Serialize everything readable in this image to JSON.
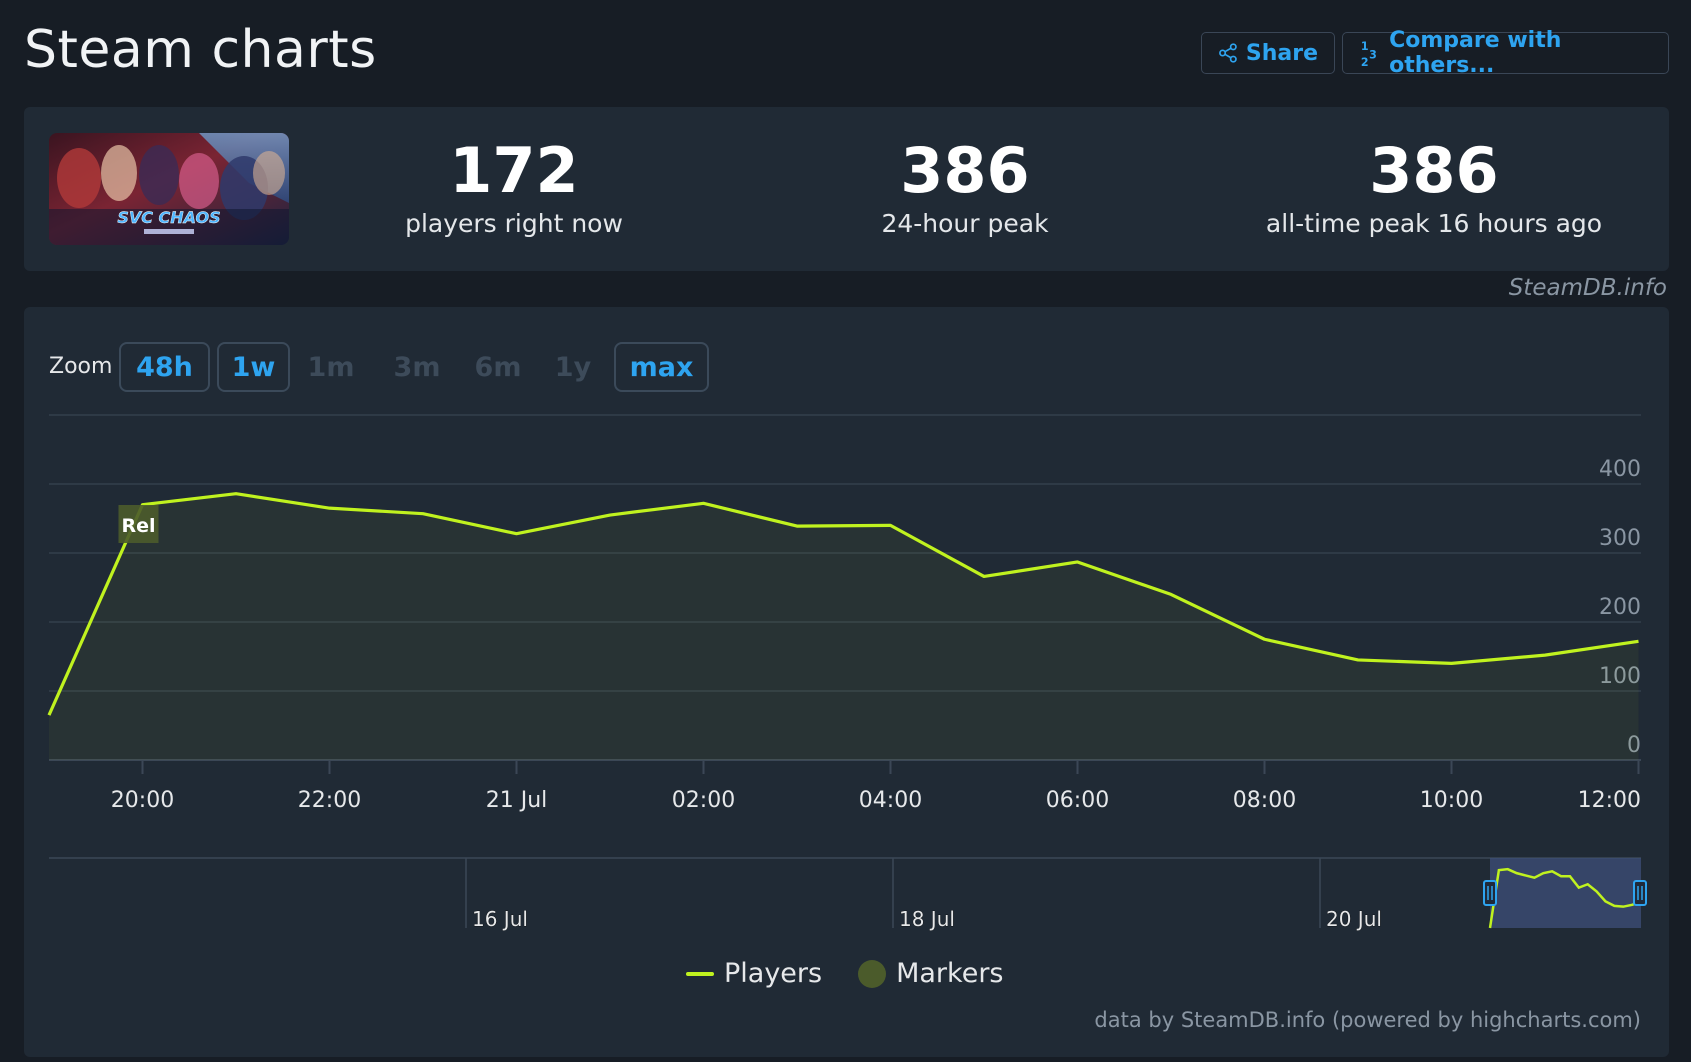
{
  "page": {
    "title": "Steam charts"
  },
  "toolbar": {
    "share_label": "Share",
    "compare_label": "Compare with others..."
  },
  "summary": {
    "players_now_value": "172",
    "players_now_label": "players right now",
    "peak_24h_value": "386",
    "peak_24h_label": "24-hour peak",
    "all_time_peak_value": "386",
    "all_time_peak_label": "all-time peak 16 hours ago",
    "capsule_text": "SVC CHAOS"
  },
  "credit": "SteamDB.info",
  "zoom": {
    "label": "Zoom",
    "options": [
      {
        "label": "48h",
        "active": true
      },
      {
        "label": "1w",
        "active": true
      },
      {
        "label": "1m",
        "active": false
      },
      {
        "label": "3m",
        "active": false
      },
      {
        "label": "6m",
        "active": false
      },
      {
        "label": "1y",
        "active": false
      },
      {
        "label": "max",
        "active": true
      }
    ]
  },
  "legend": {
    "players": "Players",
    "markers": "Markers"
  },
  "footer": "data by SteamDB.info (powered by highcharts.com)",
  "colors": {
    "background": "#171d25",
    "panel": "#202a35",
    "accent": "#2ea4f0",
    "series": "#c0f21f",
    "marker": "#4b5b2b"
  },
  "chart_data": {
    "type": "line",
    "series": [
      {
        "name": "Players",
        "x": [
          "19:00",
          "20:00",
          "21:00",
          "22:00",
          "23:00",
          "00:00",
          "01:00",
          "02:00",
          "03:00",
          "04:00",
          "05:00",
          "06:00",
          "07:00",
          "08:00",
          "09:00",
          "10:00",
          "11:00",
          "12:00"
        ],
        "values": [
          65,
          370,
          386,
          365,
          357,
          328,
          355,
          372,
          339,
          340,
          266,
          287,
          240,
          175,
          145,
          140,
          152,
          172
        ]
      }
    ],
    "x_tick_labels": [
      "20:00",
      "22:00",
      "21 Jul",
      "02:00",
      "04:00",
      "06:00",
      "08:00",
      "10:00",
      "12:00"
    ],
    "y_tick_labels": [
      "0",
      "100",
      "200",
      "300",
      "400"
    ],
    "ylim": [
      0,
      500
    ],
    "markers": [
      {
        "label": "Rel",
        "x": "20:00"
      }
    ],
    "navigator": {
      "date_labels": [
        "16 Jul",
        "18 Jul",
        "20 Jul"
      ],
      "values": [
        0,
        380,
        386,
        360,
        345,
        330,
        360,
        372,
        340,
        340,
        265,
        287,
        240,
        175,
        145,
        140,
        152,
        172
      ]
    },
    "legend": [
      "Players",
      "Markers"
    ],
    "grid": true
  }
}
